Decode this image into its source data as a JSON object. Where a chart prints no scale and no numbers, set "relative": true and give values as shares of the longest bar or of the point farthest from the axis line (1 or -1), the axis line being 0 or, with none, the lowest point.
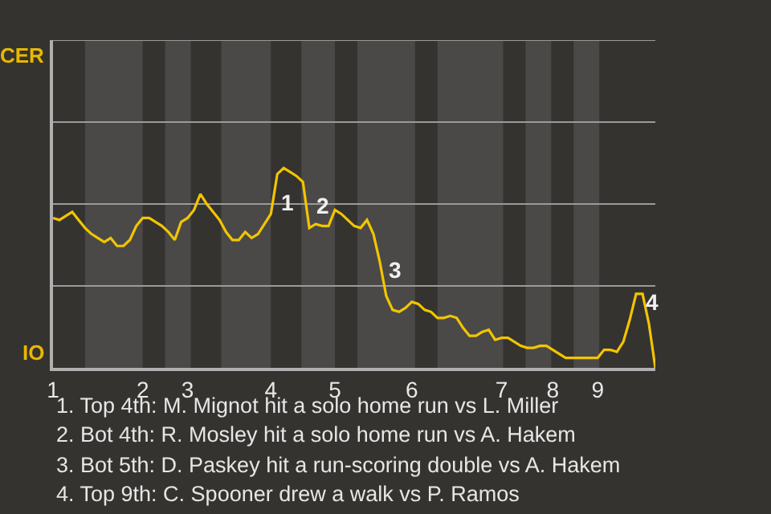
{
  "chart_data": {
    "type": "line",
    "relative": true,
    "categories": [
      "1",
      null,
      null,
      null,
      null,
      null,
      null,
      null,
      null,
      null,
      null,
      null,
      null,
      null,
      "2",
      null,
      null,
      null,
      null,
      null,
      null,
      "3",
      null,
      null,
      null,
      null,
      null,
      null,
      null,
      null,
      null,
      null,
      null,
      null,
      "4",
      null,
      null,
      null,
      null,
      null,
      null,
      null,
      null,
      null,
      "5",
      null,
      null,
      null,
      null,
      null,
      null,
      null,
      null,
      null,
      null,
      null,
      "6",
      null,
      null,
      null,
      null,
      null,
      null,
      null,
      null,
      null,
      null,
      null,
      null,
      null,
      "7",
      null,
      null,
      null,
      null,
      null,
      null,
      null,
      "8",
      null,
      null,
      null,
      null,
      null,
      null,
      "9",
      null,
      null,
      null,
      null,
      null,
      null,
      null,
      null,
      null
    ],
    "line_style": "solid",
    "ref_lines": [
      {
        "axis": "y",
        "value": 0.41,
        "color": "#9a9a9a"
      },
      {
        "axis": "y",
        "value": 0.82,
        "color": "#9a9a9a"
      },
      {
        "axis": "y",
        "value": 1.23,
        "color": "#9a9a9a"
      },
      {
        "axis": "y",
        "value": 1.64,
        "color": "#9a9a9a"
      }
    ],
    "series": [
      {
        "color": "#f2c500",
        "values": [
          0.75,
          0.74,
          0.76,
          0.78,
          0.74,
          0.7,
          0.67,
          0.65,
          0.63,
          0.65,
          0.61,
          0.61,
          0.64,
          0.71,
          0.75,
          0.75,
          0.73,
          0.71,
          0.68,
          0.64,
          0.73,
          0.75,
          0.79,
          0.87,
          0.82,
          0.78,
          0.74,
          0.68,
          0.64,
          0.64,
          0.68,
          0.65,
          0.67,
          0.72,
          0.77,
          0.97,
          1,
          0.98,
          0.96,
          0.93,
          0.7,
          0.72,
          0.71,
          0.71,
          0.79,
          0.77,
          0.74,
          0.71,
          0.7,
          0.74,
          0.67,
          0.53,
          0.36,
          0.29,
          0.28,
          0.3,
          0.33,
          0.32,
          0.29,
          0.28,
          0.25,
          0.25,
          0.26,
          0.25,
          0.2,
          0.16,
          0.16,
          0.18,
          0.19,
          0.14,
          0.15,
          0.15,
          0.13,
          0.11,
          0.1,
          0.1,
          0.11,
          0.11,
          0.09,
          0.07,
          0.05,
          0.05,
          0.05,
          0.05,
          0.05,
          0.05,
          0.09,
          0.09,
          0.08,
          0.13,
          0.24,
          0.37,
          0.37,
          0.22,
          0
        ]
      }
    ],
    "annotations": [
      "CER",
      "IO",
      "1",
      "2",
      "3",
      "4",
      "1. Top 4th: M. Mignot hit a solo home run vs L. Miller",
      "2. Bot 4th: R. Mosley hit a solo home run vs A. Hakem",
      "3. Bot 5th: D. Paskey hit a run-scoring double vs A. Hakem",
      "4. Top 9th: C. Spooner drew a walk vs P. Ramos"
    ]
  }
}
